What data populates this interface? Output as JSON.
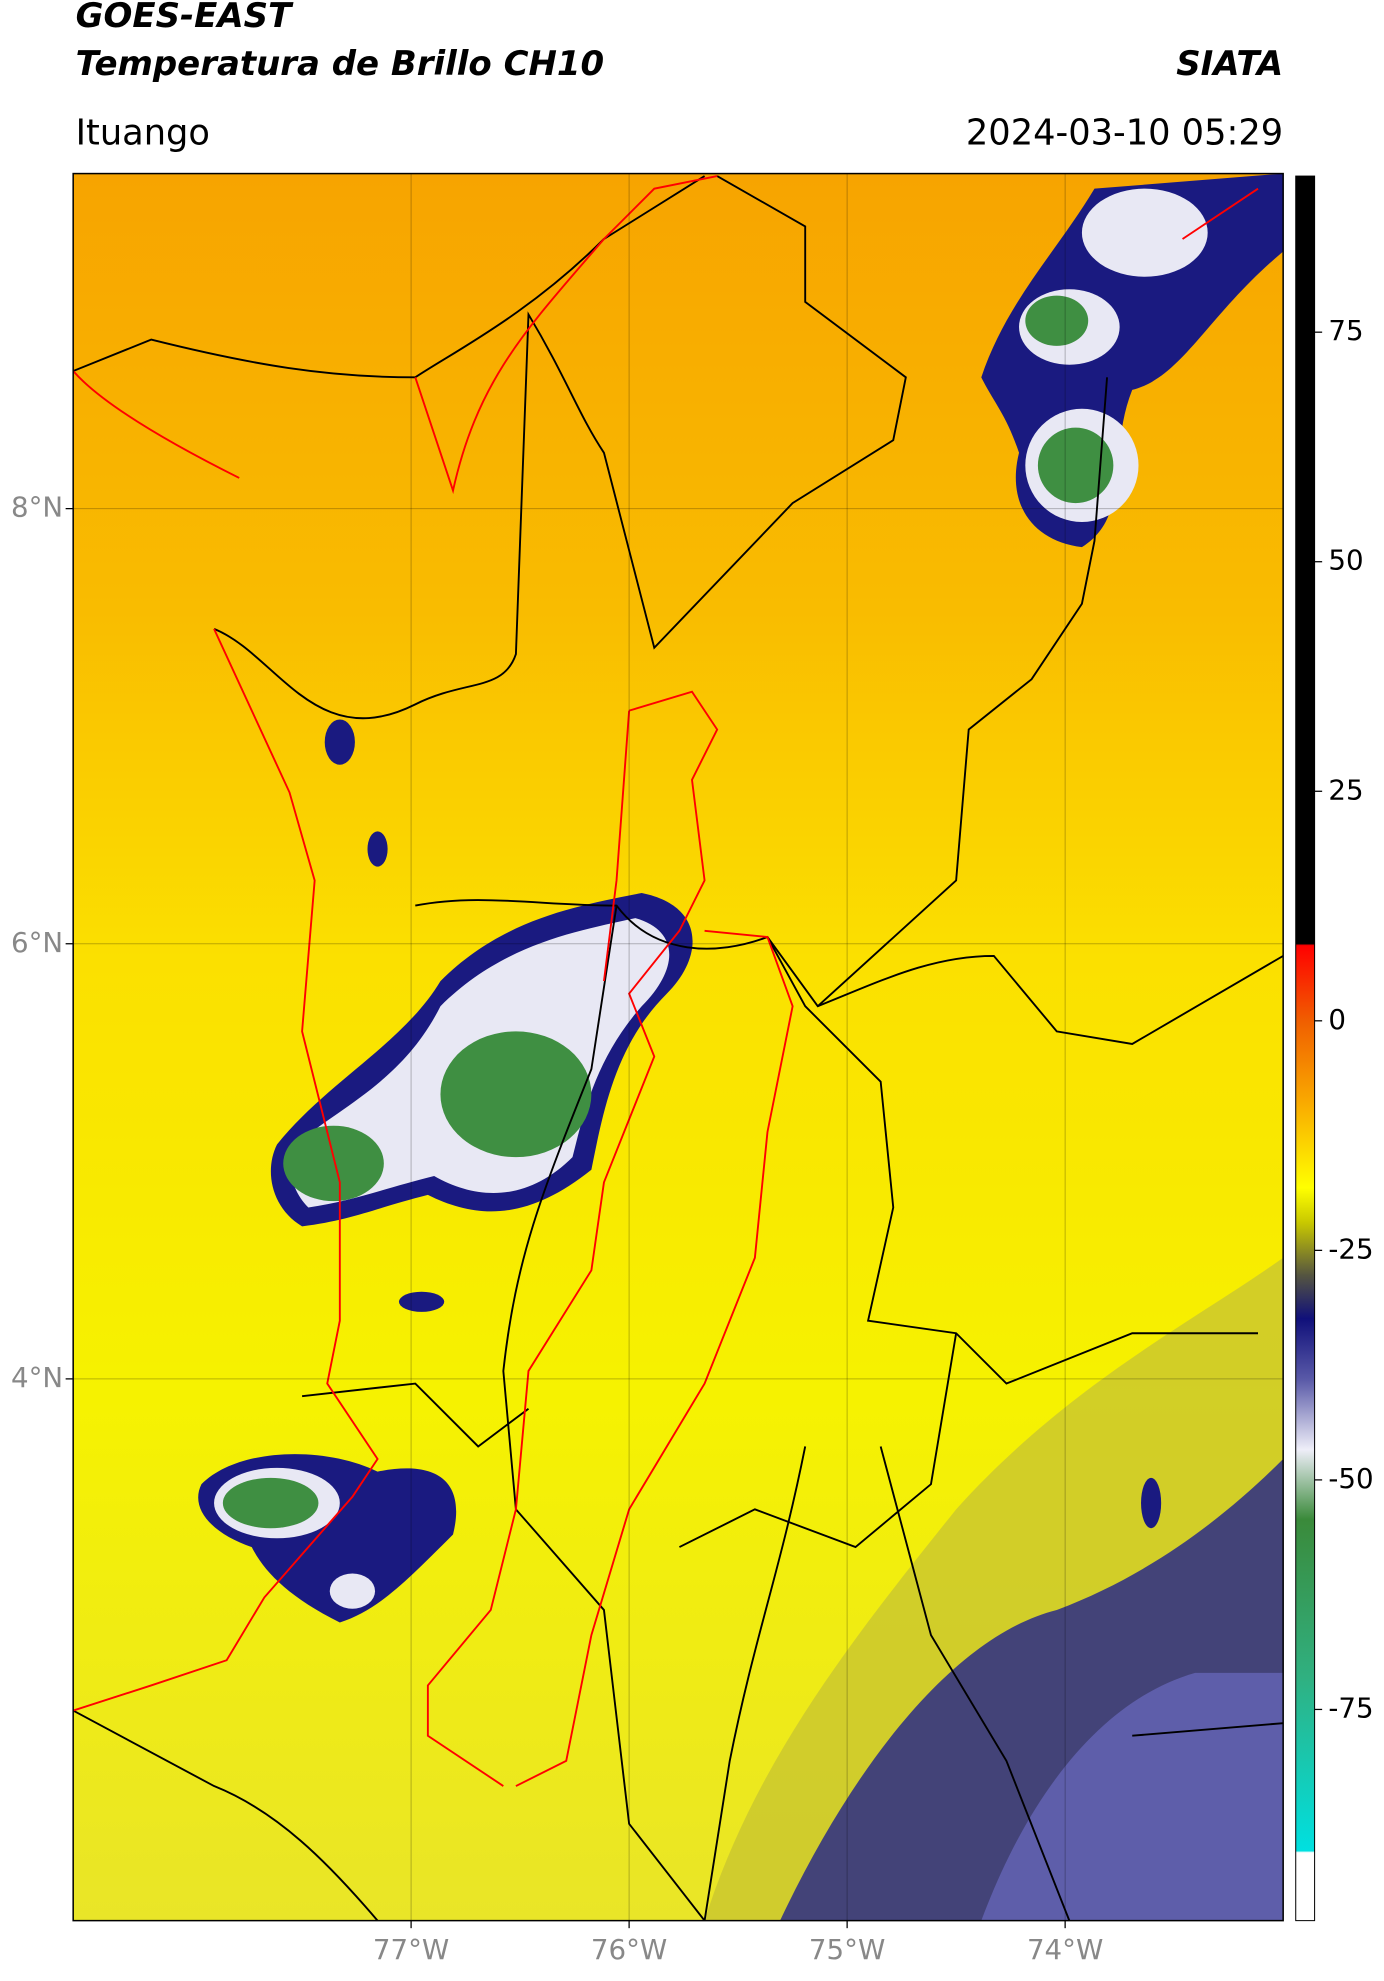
{
  "chart_data": {
    "type": "map",
    "title": "GOES-EAST",
    "subtitle": "Temperatura de Brillo CH10",
    "source": "SIATA",
    "location": "Ituango",
    "datetime": "2024-03-10 05:29",
    "xlim": [
      -78.55,
      -73.0
    ],
    "ylim": [
      1.51,
      9.54
    ],
    "xticks": [
      {
        "value": -77,
        "label": "77°W"
      },
      {
        "value": -76,
        "label": "76°W"
      },
      {
        "value": -75,
        "label": "75°W"
      },
      {
        "value": -74,
        "label": "74°W"
      }
    ],
    "yticks": [
      {
        "value": 8,
        "label": "8°N"
      },
      {
        "value": 6,
        "label": "6°N"
      },
      {
        "value": 4,
        "label": "4°N"
      }
    ],
    "grid": true,
    "clim": [
      -98,
      92
    ],
    "cticks": [
      75,
      50,
      25,
      0,
      -25,
      -50,
      -75
    ]
  }
}
